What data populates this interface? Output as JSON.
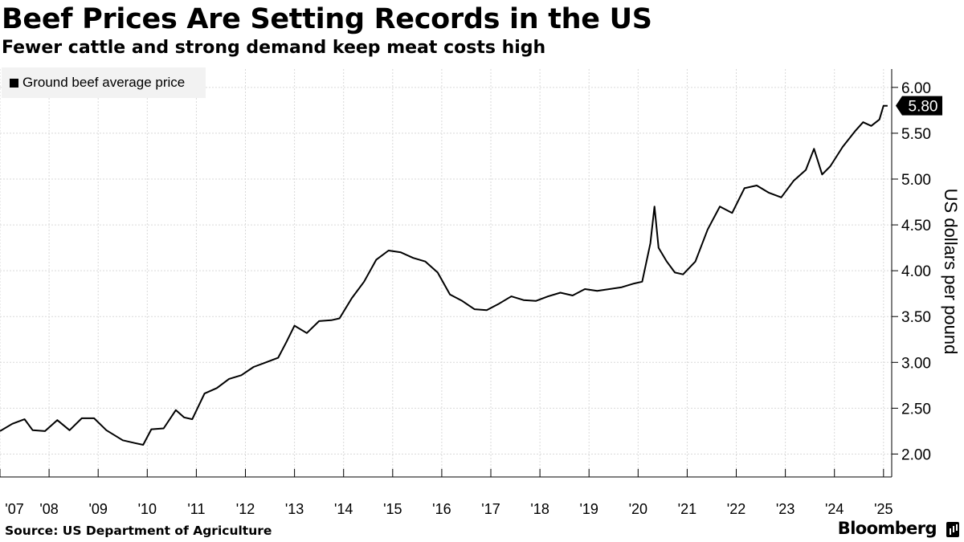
{
  "header": {
    "title": "Beef Prices Are Setting Records in the US",
    "subtitle": "Fewer cattle and strong demand keep meat costs high"
  },
  "footer": {
    "source": "Source: US Department of Agriculture",
    "brand": "Bloomberg"
  },
  "colors": {
    "line": "#000000",
    "grid": "#d9d9d9",
    "legend_bg": "#f2f2f2"
  },
  "chart_data": {
    "type": "line",
    "legend_position": "top-left",
    "grid": true,
    "ylabel": "US dollars per pound",
    "ylim": [
      1.75,
      6.2
    ],
    "yticks": [
      2.0,
      2.5,
      3.0,
      3.5,
      4.0,
      4.5,
      5.0,
      5.5,
      6.0
    ],
    "ytick_labels": [
      "2.00",
      "2.50",
      "3.00",
      "3.50",
      "4.00",
      "4.50",
      "5.00",
      "5.50",
      "6.00"
    ],
    "xlim": [
      "2007-01",
      "2025-03"
    ],
    "xticks": [
      "2007-01",
      "2008-01",
      "2009-01",
      "2010-01",
      "2011-01",
      "2012-01",
      "2013-01",
      "2014-01",
      "2015-01",
      "2016-01",
      "2017-01",
      "2018-01",
      "2019-01",
      "2020-01",
      "2021-01",
      "2022-01",
      "2023-01",
      "2024-01",
      "2025-01"
    ],
    "xtick_labels": [
      "'07",
      "'08",
      "'09",
      "'10",
      "'11",
      "'12",
      "'13",
      "'14",
      "'15",
      "'16",
      "'17",
      "'18",
      "'19",
      "'20",
      "'21",
      "'22",
      "'23",
      "'24",
      "'25"
    ],
    "last_value_label": "5.80",
    "series": [
      {
        "name": "Ground beef average price",
        "points": [
          [
            "2007-01",
            2.25
          ],
          [
            "2007-04",
            2.33
          ],
          [
            "2007-07",
            2.38
          ],
          [
            "2007-09",
            2.26
          ],
          [
            "2007-12",
            2.25
          ],
          [
            "2008-03",
            2.37
          ],
          [
            "2008-06",
            2.26
          ],
          [
            "2008-09",
            2.39
          ],
          [
            "2008-12",
            2.39
          ],
          [
            "2009-03",
            2.26
          ],
          [
            "2009-07",
            2.15
          ],
          [
            "2009-10",
            2.12
          ],
          [
            "2009-12",
            2.1
          ],
          [
            "2010-02",
            2.27
          ],
          [
            "2010-05",
            2.28
          ],
          [
            "2010-08",
            2.48
          ],
          [
            "2010-10",
            2.4
          ],
          [
            "2010-12",
            2.38
          ],
          [
            "2011-03",
            2.66
          ],
          [
            "2011-06",
            2.72
          ],
          [
            "2011-09",
            2.82
          ],
          [
            "2011-12",
            2.86
          ],
          [
            "2012-03",
            2.95
          ],
          [
            "2012-06",
            3.0
          ],
          [
            "2012-09",
            3.05
          ],
          [
            "2012-11",
            3.22
          ],
          [
            "2013-01",
            3.4
          ],
          [
            "2013-04",
            3.32
          ],
          [
            "2013-07",
            3.45
          ],
          [
            "2013-10",
            3.46
          ],
          [
            "2013-12",
            3.48
          ],
          [
            "2014-03",
            3.7
          ],
          [
            "2014-06",
            3.88
          ],
          [
            "2014-09",
            4.12
          ],
          [
            "2014-12",
            4.22
          ],
          [
            "2015-03",
            4.2
          ],
          [
            "2015-06",
            4.14
          ],
          [
            "2015-09",
            4.1
          ],
          [
            "2015-12",
            3.98
          ],
          [
            "2016-03",
            3.74
          ],
          [
            "2016-06",
            3.67
          ],
          [
            "2016-09",
            3.58
          ],
          [
            "2016-12",
            3.57
          ],
          [
            "2017-03",
            3.64
          ],
          [
            "2017-06",
            3.72
          ],
          [
            "2017-09",
            3.68
          ],
          [
            "2017-12",
            3.67
          ],
          [
            "2018-03",
            3.72
          ],
          [
            "2018-06",
            3.76
          ],
          [
            "2018-09",
            3.73
          ],
          [
            "2018-12",
            3.8
          ],
          [
            "2019-03",
            3.78
          ],
          [
            "2019-06",
            3.8
          ],
          [
            "2019-09",
            3.82
          ],
          [
            "2019-12",
            3.86
          ],
          [
            "2020-02",
            3.88
          ],
          [
            "2020-04",
            4.3
          ],
          [
            "2020-05",
            4.7
          ],
          [
            "2020-06",
            4.25
          ],
          [
            "2020-08",
            4.1
          ],
          [
            "2020-10",
            3.98
          ],
          [
            "2020-12",
            3.96
          ],
          [
            "2021-03",
            4.1
          ],
          [
            "2021-06",
            4.45
          ],
          [
            "2021-09",
            4.7
          ],
          [
            "2021-12",
            4.63
          ],
          [
            "2022-03",
            4.9
          ],
          [
            "2022-06",
            4.93
          ],
          [
            "2022-09",
            4.85
          ],
          [
            "2022-12",
            4.8
          ],
          [
            "2023-03",
            4.98
          ],
          [
            "2023-06",
            5.1
          ],
          [
            "2023-08",
            5.33
          ],
          [
            "2023-10",
            5.05
          ],
          [
            "2023-12",
            5.14
          ],
          [
            "2024-03",
            5.35
          ],
          [
            "2024-06",
            5.52
          ],
          [
            "2024-08",
            5.62
          ],
          [
            "2024-10",
            5.58
          ],
          [
            "2024-12",
            5.65
          ],
          [
            "2025-01",
            5.8
          ],
          [
            "2025-02",
            5.8
          ]
        ]
      }
    ]
  }
}
